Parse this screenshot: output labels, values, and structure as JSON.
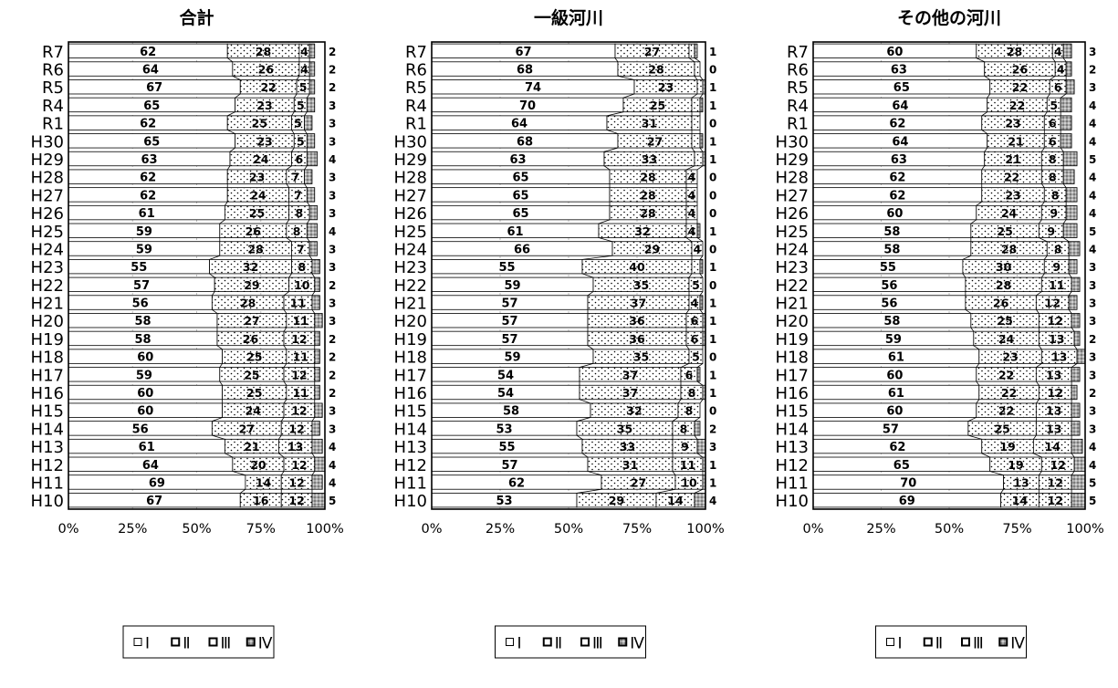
{
  "categories": [
    "R7",
    "R6",
    "R5",
    "R4",
    "R1",
    "H30",
    "H29",
    "H28",
    "H27",
    "H26",
    "H25",
    "H24",
    "H23",
    "H22",
    "H21",
    "H20",
    "H19",
    "H18",
    "H17",
    "H16",
    "H15",
    "H14",
    "H13",
    "H12",
    "H11",
    "H10"
  ],
  "legend_labels": [
    "Ⅰ",
    "Ⅱ",
    "Ⅲ",
    "Ⅳ"
  ],
  "x_ticks": [
    "0%",
    "25%",
    "50%",
    "75%",
    "100%"
  ],
  "colors": {
    "bg": "#ffffff",
    "ink": "#000000",
    "grid": "#bdbdbd",
    "seg4": "#a9a9a9"
  },
  "chart_data": [
    {
      "type": "bar",
      "stacked": "percent",
      "orientation": "horizontal",
      "title": "合計",
      "xlim": [
        0,
        100
      ],
      "categories": [
        "R7",
        "R6",
        "R5",
        "R4",
        "R1",
        "H30",
        "H29",
        "H28",
        "H27",
        "H26",
        "H25",
        "H24",
        "H23",
        "H22",
        "H21",
        "H20",
        "H19",
        "H18",
        "H17",
        "H16",
        "H15",
        "H14",
        "H13",
        "H12",
        "H11",
        "H10"
      ],
      "series": [
        {
          "name": "Ⅰ",
          "values": [
            62,
            64,
            67,
            65,
            62,
            65,
            63,
            62,
            62,
            61,
            59,
            59,
            55,
            57,
            56,
            58,
            58,
            60,
            59,
            60,
            60,
            56,
            61,
            64,
            69,
            67
          ]
        },
        {
          "name": "Ⅱ",
          "values": [
            28,
            26,
            22,
            23,
            25,
            23,
            24,
            23,
            24,
            25,
            26,
            28,
            32,
            29,
            28,
            27,
            26,
            25,
            25,
            25,
            24,
            27,
            21,
            20,
            14,
            16
          ]
        },
        {
          "name": "Ⅲ",
          "values": [
            4,
            4,
            5,
            5,
            5,
            5,
            6,
            7,
            7,
            8,
            8,
            7,
            8,
            10,
            11,
            11,
            12,
            11,
            12,
            11,
            12,
            12,
            13,
            12,
            12,
            12
          ]
        },
        {
          "name": "Ⅳ",
          "values": [
            2,
            2,
            2,
            3,
            3,
            3,
            4,
            3,
            3,
            3,
            4,
            3,
            3,
            2,
            3,
            3,
            2,
            2,
            2,
            2,
            3,
            3,
            4,
            4,
            4,
            5
          ]
        }
      ],
      "grid": true,
      "legend": "bottom"
    },
    {
      "type": "bar",
      "stacked": "percent",
      "orientation": "horizontal",
      "title": "一級河川",
      "xlim": [
        0,
        100
      ],
      "categories": [
        "R7",
        "R6",
        "R5",
        "R4",
        "R1",
        "H30",
        "H29",
        "H28",
        "H27",
        "H26",
        "H25",
        "H24",
        "H23",
        "H22",
        "H21",
        "H20",
        "H19",
        "H18",
        "H17",
        "H16",
        "H15",
        "H14",
        "H13",
        "H12",
        "H11",
        "H10"
      ],
      "series": [
        {
          "name": "Ⅰ",
          "values": [
            67,
            68,
            74,
            70,
            64,
            68,
            63,
            65,
            65,
            65,
            61,
            66,
            55,
            59,
            57,
            57,
            57,
            59,
            54,
            54,
            58,
            53,
            55,
            57,
            62,
            53
          ]
        },
        {
          "name": "Ⅱ",
          "values": [
            27,
            28,
            23,
            25,
            31,
            27,
            33,
            28,
            28,
            28,
            32,
            29,
            40,
            35,
            37,
            36,
            36,
            35,
            37,
            37,
            32,
            35,
            33,
            31,
            27,
            29
          ]
        },
        {
          "name": "Ⅲ",
          "values": [
            2,
            2,
            2,
            3,
            3,
            3,
            3,
            4,
            4,
            4,
            4,
            4,
            3,
            5,
            4,
            6,
            6,
            5,
            6,
            8,
            8,
            8,
            9,
            11,
            10,
            14
          ]
        },
        {
          "name": "Ⅳ",
          "values": [
            1,
            0,
            1,
            1,
            0,
            1,
            1,
            0,
            0,
            0,
            1,
            0,
            1,
            0,
            1,
            1,
            1,
            0,
            1,
            1,
            0,
            2,
            3,
            1,
            1,
            4
          ]
        }
      ],
      "grid": true,
      "legend": "bottom"
    },
    {
      "type": "bar",
      "stacked": "percent",
      "orientation": "horizontal",
      "title": "その他の河川",
      "xlim": [
        0,
        100
      ],
      "categories": [
        "R7",
        "R6",
        "R5",
        "R4",
        "R1",
        "H30",
        "H29",
        "H28",
        "H27",
        "H26",
        "H25",
        "H24",
        "H23",
        "H22",
        "H21",
        "H20",
        "H19",
        "H18",
        "H17",
        "H16",
        "H15",
        "H14",
        "H13",
        "H12",
        "H11",
        "H10"
      ],
      "series": [
        {
          "name": "Ⅰ",
          "values": [
            60,
            63,
            65,
            64,
            62,
            64,
            63,
            62,
            62,
            60,
            58,
            58,
            55,
            56,
            56,
            58,
            59,
            61,
            60,
            61,
            60,
            57,
            62,
            65,
            70,
            69
          ]
        },
        {
          "name": "Ⅱ",
          "values": [
            28,
            26,
            22,
            22,
            23,
            21,
            21,
            22,
            23,
            24,
            25,
            28,
            30,
            28,
            26,
            25,
            24,
            23,
            22,
            22,
            22,
            25,
            19,
            19,
            13,
            14
          ]
        },
        {
          "name": "Ⅲ",
          "values": [
            4,
            4,
            6,
            5,
            6,
            6,
            8,
            8,
            8,
            9,
            9,
            8,
            9,
            11,
            12,
            12,
            13,
            13,
            13,
            12,
            13,
            13,
            14,
            12,
            12,
            12
          ]
        },
        {
          "name": "Ⅳ",
          "values": [
            3,
            2,
            3,
            4,
            4,
            4,
            5,
            4,
            4,
            4,
            5,
            4,
            3,
            3,
            3,
            3,
            2,
            3,
            3,
            2,
            3,
            3,
            4,
            4,
            5,
            5
          ]
        }
      ],
      "grid": true,
      "legend": "bottom"
    }
  ]
}
